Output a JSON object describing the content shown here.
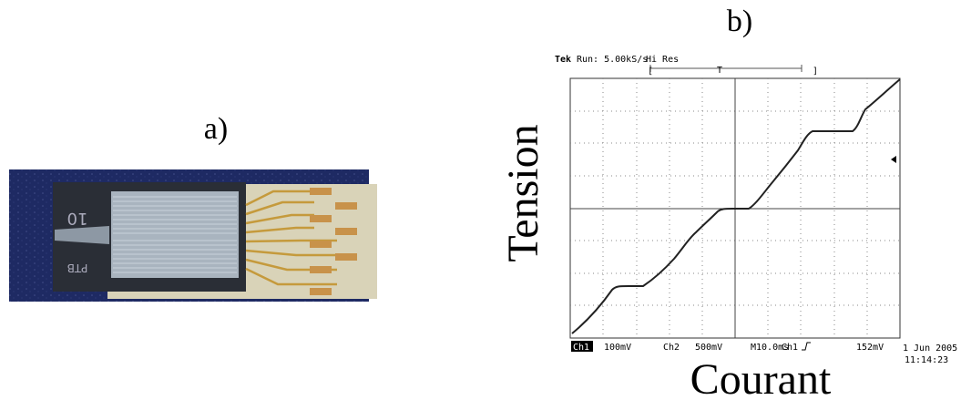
{
  "panel_a": {
    "label": "a)",
    "chip_text": {
      "number": "10",
      "maker": "PTB"
    }
  },
  "panel_b": {
    "label": "b)",
    "y_label": "Tension",
    "x_label": "Courant",
    "header": {
      "brand": "Tek",
      "status": "Run: 5.00kS/s",
      "mode": "Hi Res",
      "bracket_open": "[",
      "trigger": "T",
      "bracket_close": "]"
    },
    "readout": {
      "ch1": "Ch1",
      "ch1_scale": "100mV",
      "ch2": "Ch2",
      "ch2_scale": "500mV",
      "timebase": "M10.0ms",
      "trig_source": "Ch1",
      "trig_level": "152mV",
      "date": "1 Jun 2005",
      "time": "11:14:23"
    }
  }
}
